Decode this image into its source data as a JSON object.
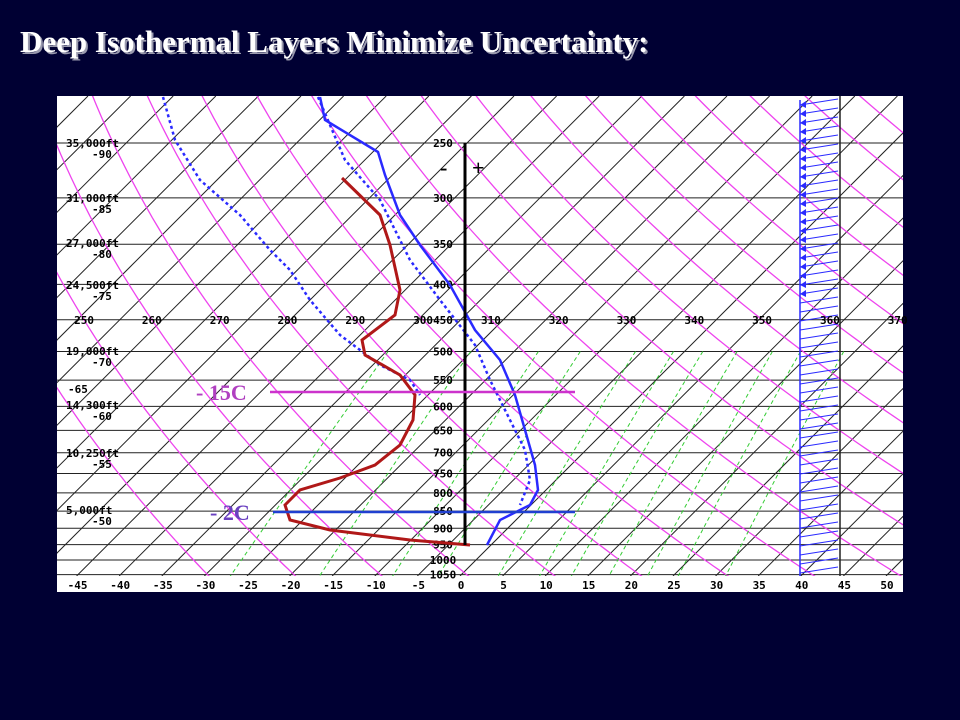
{
  "title": "Deep Isothermal Layers Minimize Uncertainty:",
  "diagram": {
    "temperature_axis": [
      -45,
      -40,
      -35,
      -30,
      -25,
      -20,
      -15,
      -10,
      -5,
      0,
      5,
      10,
      15,
      20,
      25,
      30,
      35,
      40,
      45,
      50
    ],
    "pressure_labels": [
      250,
      300,
      350,
      400,
      450,
      500,
      550,
      600,
      650,
      700,
      750,
      800,
      850,
      900,
      950,
      1000,
      1050
    ],
    "theta_labels": [
      250,
      260,
      270,
      280,
      290,
      300,
      310,
      320,
      330,
      340,
      350,
      360,
      370
    ],
    "altitude_labels": [
      {
        "height": "35,000ft",
        "temp": "-90"
      },
      {
        "height": "31,000ft",
        "temp": "-85"
      },
      {
        "height": "27,000ft",
        "temp": "-80"
      },
      {
        "height": "24,500ft",
        "temp": "-75"
      },
      {
        "height": "19,000ft",
        "temp": "-70"
      },
      {
        "height": "14,300ft",
        "temp": "-60"
      },
      {
        "height": "10,250ft",
        "temp": "-55"
      },
      {
        "height": "5,000ft",
        "temp": "-50"
      }
    ],
    "extra_temp_label": "-65",
    "sign_minus": "-",
    "sign_plus": "+",
    "annotations": [
      "- 15C",
      "- 2C"
    ]
  }
}
